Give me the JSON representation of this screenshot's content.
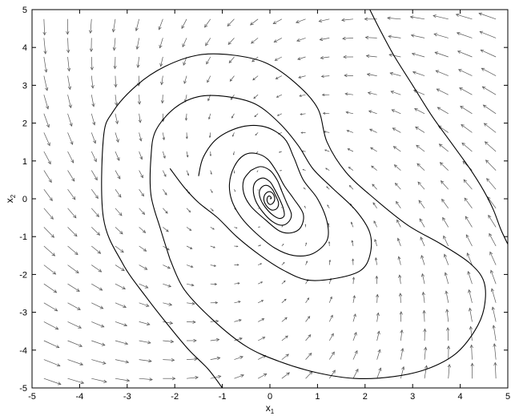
{
  "chart_data": {
    "type": "line",
    "subtype": "phase-portrait",
    "title": "",
    "xlabel": "x",
    "xlabel_sub": "1",
    "ylabel": "x",
    "ylabel_sub": "2",
    "xlim": [
      -5,
      5
    ],
    "ylim": [
      -5,
      5
    ],
    "xticks": [
      -5,
      -4,
      -3,
      -2,
      -1,
      0,
      1,
      2,
      3,
      4,
      5
    ],
    "yticks": [
      -5,
      -4,
      -3,
      -2,
      -1,
      0,
      1,
      2,
      3,
      4,
      5
    ],
    "grid": false,
    "vector_field": {
      "description": "counter-clockwise inward spiral flow field",
      "x_range": [
        -4.75,
        4.75
      ],
      "y_range": [
        -4.75,
        4.75
      ],
      "count_x": 20,
      "count_y": 20
    },
    "series": [
      {
        "x": [
          -1.0,
          -1.3,
          -1.7,
          -2.1,
          -2.6,
          -3.1,
          -3.5,
          -3.5,
          -3.3,
          -2.8,
          -2.2,
          -1.5,
          -0.8,
          -0.1,
          0.5,
          1.0,
          1.2,
          1.6,
          2.2,
          2.9,
          3.6,
          4.2,
          4.5,
          4.5,
          4.3,
          3.9,
          3.3,
          2.6,
          1.8,
          1.0,
          0.2,
          -0.5,
          -1.2,
          -1.8,
          -2.1
        ],
        "y": [
          -5.0,
          -4.5,
          -4.0,
          -3.4,
          -2.6,
          -1.7,
          -0.5,
          1.6,
          2.3,
          3.0,
          3.5,
          3.8,
          3.8,
          3.6,
          3.1,
          2.4,
          1.5,
          0.7,
          0.0,
          -0.7,
          -1.2,
          -1.7,
          -2.2,
          -2.9,
          -3.5,
          -4.1,
          -4.5,
          -4.7,
          -4.75,
          -4.6,
          -4.3,
          -3.9,
          -3.2,
          -2.4,
          -1.6
        ]
      },
      {
        "x": [
          2.1,
          2.3,
          2.6,
          3.0,
          3.4,
          3.8,
          4.2,
          4.5,
          4.7,
          4.85,
          5.0
        ],
        "y": [
          5.0,
          4.5,
          3.8,
          3.0,
          2.2,
          1.5,
          0.8,
          0.2,
          -0.3,
          -0.8,
          -1.2
        ]
      },
      {
        "x": [
          -2.1,
          -2.3,
          -2.5,
          -2.5,
          -2.4,
          -2.0,
          -1.5,
          -0.9,
          -0.3,
          0.2,
          0.6,
          0.9,
          1.3,
          1.8,
          2.1,
          2.1,
          1.9,
          1.4,
          0.8,
          0.3,
          -0.2,
          -0.7,
          -1.1,
          -1.5,
          -1.8,
          -2.1
        ],
        "y": [
          -1.6,
          -0.8,
          0.1,
          1.1,
          1.8,
          2.4,
          2.7,
          2.7,
          2.5,
          2.0,
          1.4,
          0.8,
          0.3,
          -0.3,
          -0.9,
          -1.5,
          -1.9,
          -2.1,
          -2.15,
          -1.9,
          -1.5,
          -1.0,
          -0.5,
          -0.1,
          0.3,
          0.8
        ]
      },
      {
        "x": [
          -1.5,
          -1.4,
          -1.1,
          -0.6,
          -0.1,
          0.3,
          0.5,
          0.7,
          1.0,
          1.2,
          1.2,
          0.9,
          0.5,
          0.1,
          -0.3,
          -0.6,
          -0.8,
          -0.85,
          -0.75,
          -0.55,
          -0.3,
          -0.05,
          0.15,
          0.3,
          0.5,
          0.7,
          0.65,
          0.45,
          0.2,
          -0.1,
          -0.4,
          -0.55,
          -0.55,
          -0.4
        ],
        "y": [
          0.6,
          1.1,
          1.6,
          1.9,
          1.9,
          1.6,
          1.1,
          0.5,
          0.0,
          -0.6,
          -1.1,
          -1.45,
          -1.5,
          -1.3,
          -0.9,
          -0.5,
          -0.05,
          0.4,
          0.85,
          1.15,
          1.2,
          1.05,
          0.7,
          0.35,
          0.0,
          -0.4,
          -0.75,
          -0.9,
          -0.85,
          -0.55,
          -0.2,
          0.15,
          0.5,
          0.75
        ]
      },
      {
        "x": [
          -0.4,
          -0.2,
          0.0,
          0.15,
          0.25,
          0.35,
          0.45,
          0.4,
          0.25,
          0.05,
          -0.15,
          -0.3,
          -0.35,
          -0.3,
          -0.15,
          0.0,
          0.1,
          0.2,
          0.28,
          0.3,
          0.2,
          0.05,
          -0.1,
          -0.2,
          -0.22,
          -0.15,
          -0.05,
          0.05,
          0.12,
          0.18,
          0.15,
          0.05,
          -0.05,
          -0.12,
          -0.12,
          -0.06,
          0.02,
          0.08,
          0.1,
          0.06,
          0.0,
          -0.05,
          -0.06,
          -0.03,
          0.01,
          0.03,
          0.0
        ],
        "y": [
          0.75,
          0.85,
          0.75,
          0.5,
          0.2,
          -0.1,
          -0.4,
          -0.6,
          -0.7,
          -0.6,
          -0.35,
          -0.05,
          0.25,
          0.45,
          0.55,
          0.45,
          0.25,
          0.0,
          -0.25,
          -0.45,
          -0.52,
          -0.42,
          -0.22,
          0.0,
          0.2,
          0.33,
          0.35,
          0.25,
          0.08,
          -0.1,
          -0.25,
          -0.3,
          -0.22,
          -0.07,
          0.07,
          0.17,
          0.18,
          0.1,
          -0.02,
          -0.12,
          -0.15,
          -0.09,
          0.0,
          0.07,
          0.06,
          0.01,
          0.0
        ]
      }
    ]
  }
}
